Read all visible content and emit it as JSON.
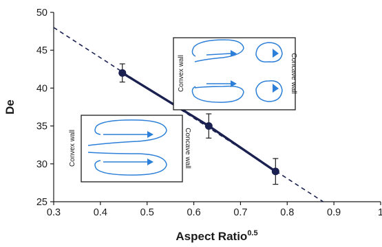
{
  "chart_data": {
    "type": "scatter",
    "xlabel": "Aspect Ratio",
    "xlabel_superscript": "0.5",
    "ylabel": "De",
    "xlim": [
      0.3,
      1.0
    ],
    "ylim": [
      25,
      50
    ],
    "xticks": [
      "0.3",
      "0.4",
      "0.5",
      "0.6",
      "0.7",
      "0.8",
      "0.9",
      "1"
    ],
    "yticks": [
      "25",
      "30",
      "35",
      "40",
      "45",
      "50"
    ],
    "grid": false,
    "series": [
      {
        "x": [
          0.447,
          0.632,
          0.775
        ],
        "y": [
          42.0,
          35.0,
          29.0
        ],
        "y_error": [
          1.2,
          1.6,
          1.7
        ],
        "color": "#1a2050",
        "marker": "circle",
        "connected": true
      }
    ],
    "trendline": {
      "style": "dashed",
      "color": "#1a2050",
      "x": [
        0.3,
        0.877
      ],
      "y": [
        48.0,
        25.0
      ]
    },
    "annotations": {
      "inset_top": {
        "left_label": "Convex wall",
        "right_label": "Concave wall",
        "description": "four-vortex secondary flow"
      },
      "inset_bottom": {
        "left_label": "Convex wall",
        "right_label": "Concave wall",
        "description": "two-vortex secondary flow"
      }
    }
  },
  "colors": {
    "data": "#1a2050",
    "flow_arrows": "#2c7fd8",
    "axis": "#1a1a1a"
  }
}
